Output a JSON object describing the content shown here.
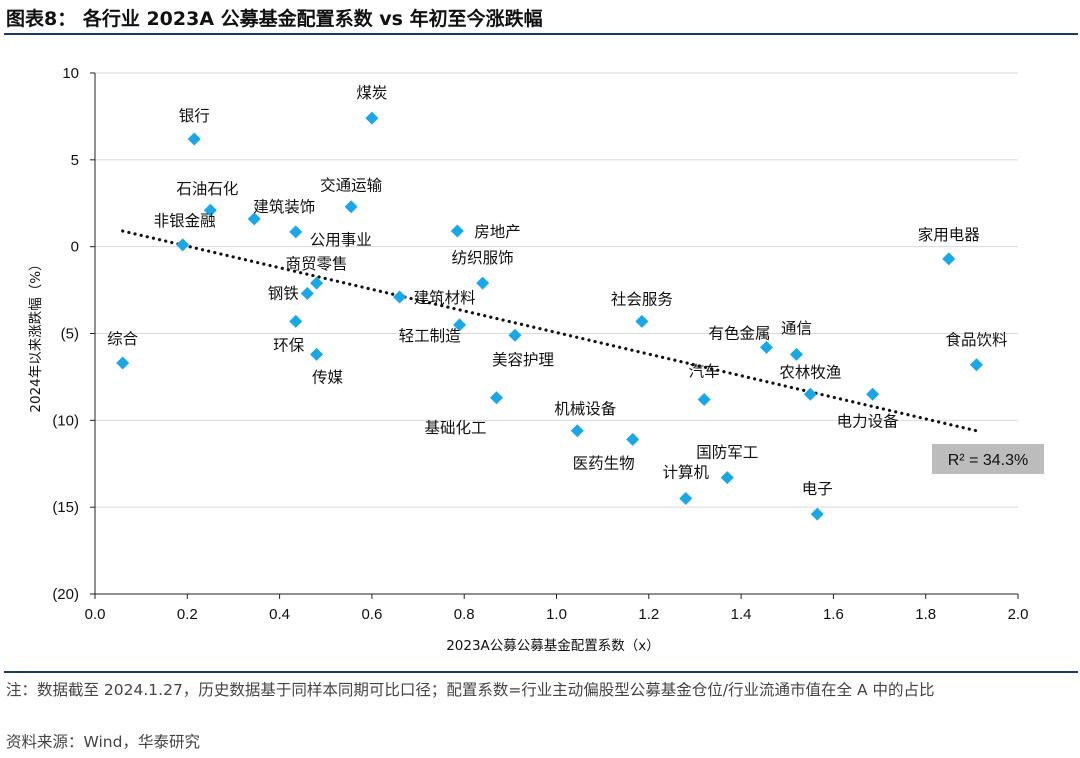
{
  "header": {
    "title": "图表8： 各行业 2023A 公募基金配置系数 vs 年初至今涨跌幅"
  },
  "footer": {
    "note": "注：数据截至 2024.1.27，历史数据基于同样本同期可比口径；配置系数=行业主动偏股型公募基金仓位/行业流通市值在全 A 中的占比",
    "source": "资料来源：Wind，华泰研究"
  },
  "chart_data": {
    "type": "scatter",
    "title": "各行业 2023A 公募基金配置系数 vs 年初至今涨跌幅",
    "xlabel": "2023A公募公募基金配置系数（x）",
    "ylabel": "2024年以来涨跌幅（%）",
    "xlim": [
      0.0,
      2.0
    ],
    "ylim": [
      -20,
      10
    ],
    "xticks": [
      0.0,
      0.2,
      0.4,
      0.6,
      0.8,
      1.0,
      1.2,
      1.4,
      1.6,
      1.8,
      2.0
    ],
    "xtick_labels": [
      "0.0",
      "0.2",
      "0.4",
      "0.6",
      "0.8",
      "1.0",
      "1.2",
      "1.4",
      "1.6",
      "1.8",
      "2.0"
    ],
    "yticks": [
      10,
      5,
      0,
      -5,
      -10,
      -15,
      -20
    ],
    "ytick_labels": [
      "10",
      "5",
      "0",
      "(5)",
      "(10)",
      "(15)",
      "(20)"
    ],
    "grid": "horizontal",
    "marker_color": "#1aa7e6",
    "trendline": {
      "style": "dotted",
      "color": "#111111",
      "x": [
        0.06,
        1.91
      ],
      "y": [
        0.9,
        -10.6
      ]
    },
    "r_squared_label": "R² = 34.3%",
    "points": [
      {
        "name": "银行",
        "x": 0.215,
        "y": 6.2
      },
      {
        "name": "煤炭",
        "x": 0.6,
        "y": 7.4
      },
      {
        "name": "石油石化",
        "x": 0.25,
        "y": 2.1
      },
      {
        "name": "建筑装饰",
        "x": 0.345,
        "y": 1.6
      },
      {
        "name": "交通运输",
        "x": 0.555,
        "y": 2.3
      },
      {
        "name": "非银金融",
        "x": 0.19,
        "y": 0.1
      },
      {
        "name": "公用事业",
        "x": 0.435,
        "y": 0.85
      },
      {
        "name": "商贸零售",
        "x": 0.48,
        "y": -2.1
      },
      {
        "name": "房地产",
        "x": 0.785,
        "y": 0.9
      },
      {
        "name": "纺织服饰",
        "x": 0.84,
        "y": -2.1
      },
      {
        "name": "钢铁",
        "x": 0.46,
        "y": -2.7
      },
      {
        "name": "建筑材料",
        "x": 0.66,
        "y": -2.9
      },
      {
        "name": "综合",
        "x": 0.06,
        "y": -6.7
      },
      {
        "name": "环保",
        "x": 0.435,
        "y": -4.3
      },
      {
        "name": "轻工制造",
        "x": 0.79,
        "y": -4.5
      },
      {
        "name": "传媒",
        "x": 0.48,
        "y": -6.2
      },
      {
        "name": "美容护理",
        "x": 0.91,
        "y": -5.1
      },
      {
        "name": "社会服务",
        "x": 1.185,
        "y": -4.3
      },
      {
        "name": "有色金属",
        "x": 1.455,
        "y": -5.8
      },
      {
        "name": "通信",
        "x": 1.52,
        "y": -6.2
      },
      {
        "name": "农林牧渔",
        "x": 1.55,
        "y": -8.5
      },
      {
        "name": "汽车",
        "x": 1.32,
        "y": -8.8
      },
      {
        "name": "基础化工",
        "x": 0.87,
        "y": -8.7
      },
      {
        "name": "机械设备",
        "x": 1.045,
        "y": -10.6
      },
      {
        "name": "医药生物",
        "x": 1.165,
        "y": -11.1
      },
      {
        "name": "国防军工",
        "x": 1.37,
        "y": -13.3
      },
      {
        "name": "计算机",
        "x": 1.28,
        "y": -14.5
      },
      {
        "name": "电子",
        "x": 1.565,
        "y": -15.4
      },
      {
        "name": "电力设备",
        "x": 1.685,
        "y": -8.5
      },
      {
        "name": "家用电器",
        "x": 1.85,
        "y": -0.7
      },
      {
        "name": "食品饮料",
        "x": 1.91,
        "y": -6.8
      }
    ]
  }
}
